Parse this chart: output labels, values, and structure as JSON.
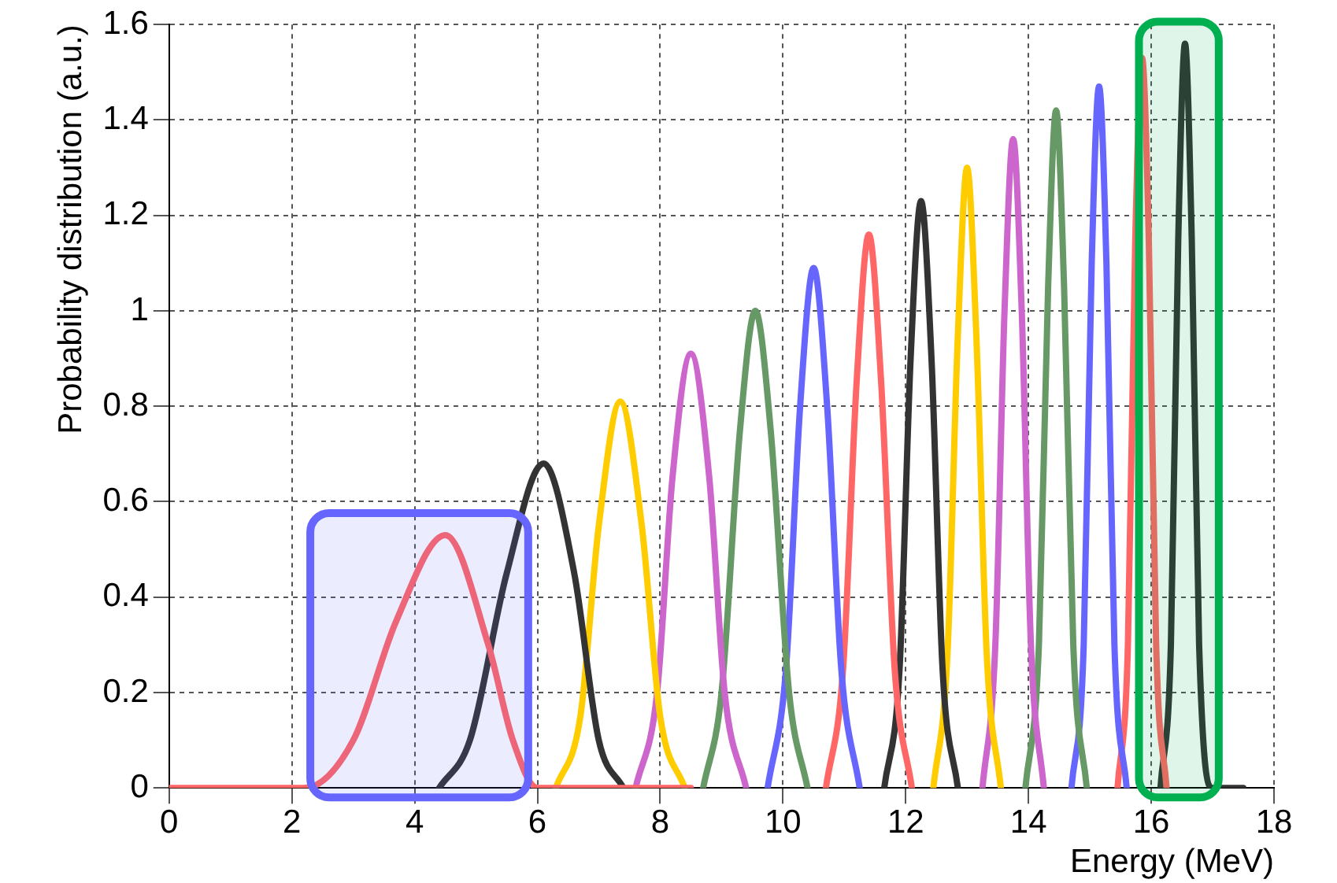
{
  "chart_data": {
    "type": "line",
    "xlabel": "Energy (MeV)",
    "ylabel": "Probability distribution (a.u.)",
    "xlim": [
      0,
      18
    ],
    "xticks": [
      0,
      2,
      4,
      6,
      8,
      10,
      12,
      14,
      16,
      18
    ],
    "ylim": [
      0,
      1.6
    ],
    "yticks": [
      0,
      0.2,
      0.4,
      0.6,
      0.8,
      1,
      1.2,
      1.4,
      1.6
    ],
    "grid": true,
    "legend": false,
    "bands": [
      {
        "axis": "x",
        "from": 2.3,
        "to": 5.85,
        "color": "#6666ff"
      },
      {
        "axis": "x",
        "from": 15.8,
        "to": 17.1,
        "color": "#00b050"
      }
    ],
    "marker": "none",
    "line_style": "solid",
    "series": [
      {
        "color": "#ff6666",
        "x": [
          0,
          2.2,
          3.0,
          3.7,
          4.5,
          5.2,
          5.6,
          6.0,
          8.5
        ],
        "values": [
          0,
          0,
          0.1,
          0.35,
          0.53,
          0.3,
          0.1,
          0,
          0
        ]
      },
      {
        "color": "#333333",
        "x": [
          4.4,
          4.9,
          5.5,
          6.1,
          6.6,
          7.0,
          7.4
        ],
        "values": [
          0,
          0.1,
          0.45,
          0.68,
          0.45,
          0.1,
          0
        ]
      },
      {
        "color": "#ffcc00",
        "x": [
          6.3,
          6.7,
          7.0,
          7.35,
          7.7,
          8.0,
          8.4
        ],
        "values": [
          0,
          0.15,
          0.55,
          0.81,
          0.55,
          0.15,
          0
        ]
      },
      {
        "color": "#cc66cc",
        "x": [
          7.6,
          7.95,
          8.2,
          8.5,
          8.8,
          9.05,
          9.4
        ],
        "values": [
          0,
          0.2,
          0.65,
          0.91,
          0.65,
          0.2,
          0
        ]
      },
      {
        "color": "#669966",
        "x": [
          8.7,
          9.0,
          9.3,
          9.55,
          9.8,
          10.1,
          10.4
        ],
        "values": [
          0,
          0.2,
          0.75,
          1.0,
          0.75,
          0.2,
          0
        ]
      },
      {
        "color": "#6666ff",
        "x": [
          9.75,
          10.05,
          10.28,
          10.5,
          10.72,
          10.95,
          11.25
        ],
        "values": [
          0,
          0.25,
          0.8,
          1.09,
          0.8,
          0.25,
          0
        ]
      },
      {
        "color": "#ff6666",
        "x": [
          10.7,
          10.98,
          11.2,
          11.4,
          11.6,
          11.82,
          12.1
        ],
        "values": [
          0,
          0.25,
          0.85,
          1.16,
          0.85,
          0.25,
          0
        ]
      },
      {
        "color": "#333333",
        "x": [
          11.65,
          11.9,
          12.08,
          12.25,
          12.42,
          12.6,
          12.85
        ],
        "values": [
          0,
          0.25,
          0.9,
          1.23,
          0.9,
          0.25,
          0
        ]
      },
      {
        "color": "#ffcc00",
        "x": [
          12.45,
          12.68,
          12.85,
          13.0,
          13.15,
          13.32,
          13.55
        ],
        "values": [
          0,
          0.28,
          0.95,
          1.3,
          0.95,
          0.28,
          0
        ]
      },
      {
        "color": "#cc66cc",
        "x": [
          13.25,
          13.46,
          13.61,
          13.75,
          13.89,
          14.04,
          14.25
        ],
        "values": [
          0,
          0.3,
          1.0,
          1.36,
          1.0,
          0.3,
          0
        ]
      },
      {
        "color": "#669966",
        "x": [
          13.95,
          14.17,
          14.32,
          14.45,
          14.58,
          14.73,
          14.95
        ],
        "values": [
          0,
          0.3,
          1.05,
          1.42,
          1.05,
          0.3,
          0
        ]
      },
      {
        "color": "#6666ff",
        "x": [
          14.7,
          14.9,
          15.03,
          15.15,
          15.27,
          15.4,
          15.6
        ],
        "values": [
          0,
          0.3,
          1.1,
          1.47,
          1.1,
          0.3,
          0
        ]
      },
      {
        "color": "#ff6666",
        "x": [
          15.45,
          15.62,
          15.74,
          15.85,
          15.96,
          16.08,
          16.25
        ],
        "values": [
          0,
          0.3,
          1.15,
          1.53,
          1.15,
          0.3,
          0
        ]
      },
      {
        "color": "#333333",
        "x": [
          16.15,
          16.32,
          16.44,
          16.55,
          16.66,
          16.78,
          17.0,
          17.5
        ],
        "values": [
          0,
          0.3,
          1.15,
          1.56,
          1.15,
          0.3,
          0,
          0
        ]
      }
    ]
  }
}
